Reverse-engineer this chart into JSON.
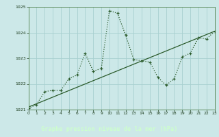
{
  "title": "Graphe pression niveau de la mer (hPa)",
  "plot_bg_color": "#cce8e8",
  "bottom_bg_color": "#4a7a4a",
  "grid_color": "#a8d0d0",
  "line_color": "#2a5a2a",
  "title_color": "#ccffcc",
  "spine_color": "#5a8a5a",
  "tick_color": "#1a3a1a",
  "xlim": [
    0,
    23
  ],
  "ylim": [
    1021,
    1025
  ],
  "yticks": [
    1021,
    1022,
    1023,
    1024,
    1025
  ],
  "xticks": [
    0,
    1,
    2,
    3,
    4,
    5,
    6,
    7,
    8,
    9,
    10,
    11,
    12,
    13,
    14,
    15,
    16,
    17,
    18,
    19,
    20,
    21,
    22,
    23
  ],
  "series1_x": [
    0,
    1,
    2,
    3,
    4,
    5,
    6,
    7,
    8,
    9,
    10,
    11,
    12,
    13,
    14,
    15,
    16,
    17,
    18,
    19,
    20,
    21,
    22,
    23
  ],
  "series1_y": [
    1021.05,
    1021.2,
    1021.7,
    1021.75,
    1021.75,
    1022.2,
    1022.35,
    1023.2,
    1022.5,
    1022.6,
    1024.85,
    1024.75,
    1023.9,
    1022.95,
    1022.9,
    1022.85,
    1022.25,
    1021.95,
    1022.2,
    1023.05,
    1023.2,
    1023.8,
    1023.75,
    1024.05
  ],
  "series2_x": [
    0,
    23
  ],
  "series2_y": [
    1021.1,
    1024.05
  ]
}
